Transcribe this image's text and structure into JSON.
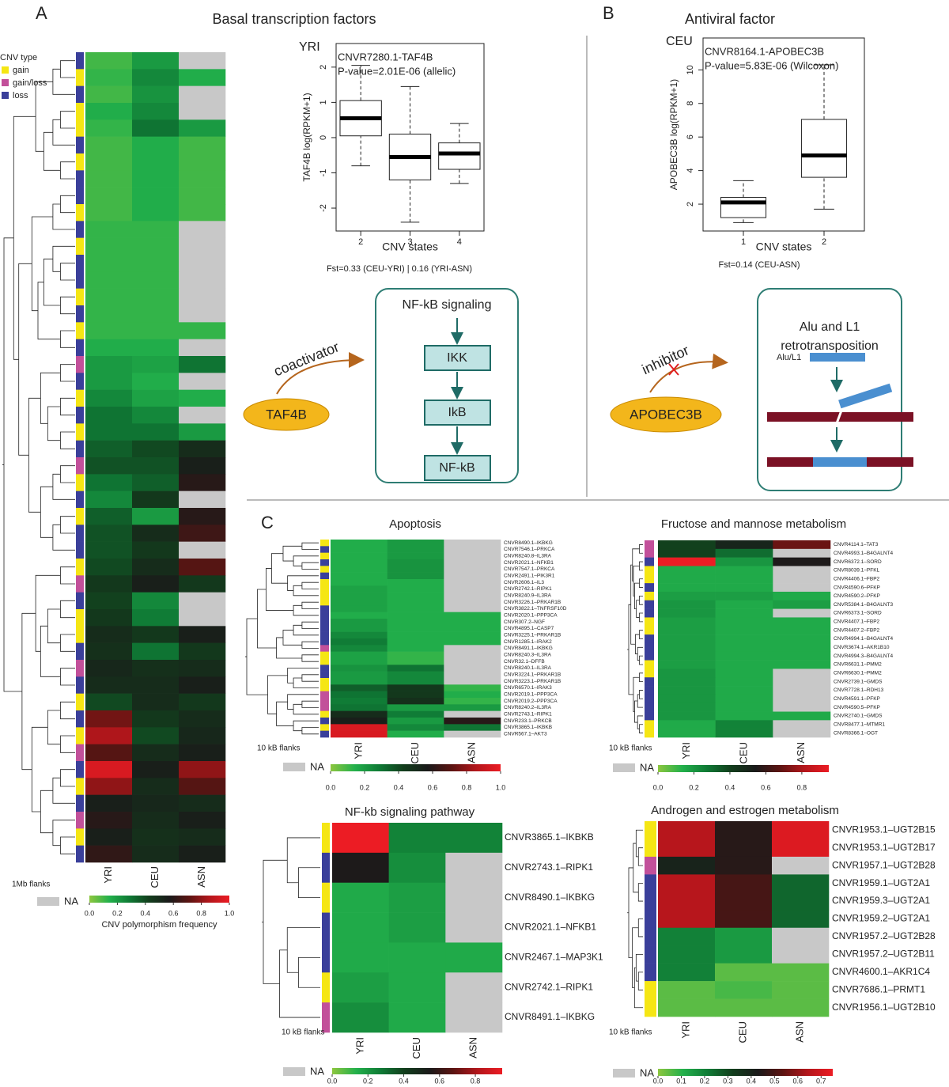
{
  "panel_labels": [
    "A",
    "B",
    "C"
  ],
  "panel_titles": [
    "Basal transcription factors",
    "Antiviral factor"
  ],
  "cnv_type_legend": {
    "title": "CNV type",
    "items": [
      {
        "name": "gain",
        "color": "#f5e614"
      },
      {
        "name": "gain/loss",
        "color": "#c2509a"
      },
      {
        "name": "loss",
        "color": "#3a3f9a"
      }
    ]
  },
  "diagrams": {
    "nfkb": {
      "title": "NF-kB signaling",
      "nodes": [
        "IKK",
        "IkB",
        "NF-kB"
      ],
      "factor": "TAF4B",
      "relation": "coactivator"
    },
    "alu": {
      "title_lines": [
        "Alu  and L1",
        "retrotransposition"
      ],
      "element": "Alu/L1",
      "factor": "APOBEC3B",
      "relation": "inhibitor"
    }
  },
  "chart_data": [
    {
      "type": "heatmap",
      "columns": [
        "YRI",
        "CEU",
        "ASN"
      ],
      "flank_label": "1Mb flanks",
      "na_label": "NA",
      "na_color": "#c8c8c8",
      "colorbar_label": "CNV polymorphism frequency",
      "colors": [
        "#8dc63f",
        "#22b04b",
        "#0f7a35",
        "#123d1c",
        "#1a1a1a",
        "#5c1412",
        "#b3161b",
        "#ec1c24"
      ],
      "zlim": [
        0,
        1
      ],
      "zticks": [
        {
          "value": 0,
          "label": "0.0"
        },
        0.2,
        0.4,
        0.6,
        0.8,
        {
          "value": 1,
          "label": "1.0"
        }
      ],
      "row_types": [
        "loss",
        "gain",
        "loss",
        "gain",
        "gain",
        "loss",
        "gain",
        "loss",
        "loss",
        "gain",
        "loss",
        "gain",
        "loss",
        "loss",
        "gain",
        "loss",
        "gain",
        "loss",
        "gain/loss",
        "loss",
        "gain",
        "loss",
        "gain",
        "loss",
        "gain/loss",
        "gain",
        "loss",
        "gain",
        "loss",
        "loss",
        "gain",
        "gain/loss",
        "loss",
        "gain",
        "gain",
        "loss",
        "gain/loss",
        "loss",
        "gain",
        "loss",
        "gain",
        "gain/loss",
        "loss",
        "gain",
        "loss",
        "gain/loss",
        "gain",
        "loss"
      ],
      "values": [
        [
          0.1,
          0.2,
          null
        ],
        [
          0.12,
          0.25,
          0.15
        ],
        [
          0.1,
          0.22,
          null
        ],
        [
          0.15,
          0.25,
          null
        ],
        [
          0.12,
          0.3,
          0.2
        ],
        [
          0.1,
          0.15,
          0.1
        ],
        [
          0.1,
          0.15,
          0.1
        ],
        [
          0.1,
          0.15,
          0.1
        ],
        [
          0.1,
          0.15,
          0.1
        ],
        [
          0.1,
          0.15,
          0.1
        ],
        [
          0.12,
          0.12,
          null
        ],
        [
          0.12,
          0.12,
          null
        ],
        [
          0.12,
          0.12,
          null
        ],
        [
          0.12,
          0.12,
          null
        ],
        [
          0.12,
          0.12,
          null
        ],
        [
          0.12,
          0.12,
          null
        ],
        [
          0.12,
          0.12,
          0.12
        ],
        [
          0.15,
          0.15,
          null
        ],
        [
          0.2,
          0.18,
          0.3
        ],
        [
          0.2,
          0.15,
          null
        ],
        [
          0.25,
          0.18,
          0.15
        ],
        [
          0.3,
          0.25,
          null
        ],
        [
          0.3,
          0.3,
          0.2
        ],
        [
          0.35,
          0.4,
          0.5
        ],
        [
          0.38,
          0.38,
          0.55
        ],
        [
          0.3,
          0.35,
          0.6
        ],
        [
          0.25,
          0.45,
          null
        ],
        [
          0.35,
          0.2,
          0.6
        ],
        [
          0.38,
          0.5,
          0.65
        ],
        [
          0.38,
          0.45,
          null
        ],
        [
          0.4,
          0.5,
          0.7
        ],
        [
          0.45,
          0.55,
          0.45
        ],
        [
          0.42,
          0.25,
          null
        ],
        [
          0.45,
          0.28,
          null
        ],
        [
          0.5,
          0.45,
          0.55
        ],
        [
          0.48,
          0.3,
          0.45
        ],
        [
          0.52,
          0.48,
          0.5
        ],
        [
          0.5,
          0.5,
          0.55
        ],
        [
          0.4,
          0.5,
          0.45
        ],
        [
          0.75,
          0.45,
          0.5
        ],
        [
          0.85,
          0.4,
          0.52
        ],
        [
          0.7,
          0.5,
          0.55
        ],
        [
          0.95,
          0.55,
          0.8
        ],
        [
          0.8,
          0.5,
          0.7
        ],
        [
          0.55,
          0.52,
          0.5
        ],
        [
          0.6,
          0.5,
          0.55
        ],
        [
          0.55,
          0.48,
          0.5
        ],
        [
          0.62,
          0.5,
          0.55
        ]
      ]
    },
    {
      "type": "boxplot",
      "title": "YRI",
      "annotations": [
        "CNVR7280.1-TAF4B",
        "P-value=2.01E-06 (allelic)"
      ],
      "xlabel": "CNV states",
      "ylabel": "TAF4B log(RPKM+1)",
      "footnote": "Fst=0.33 (CEU-YRI) | 0.16 (YRI-ASN)",
      "categories": [
        "2",
        "3",
        "4"
      ],
      "ylim": [
        -2.65,
        2.67
      ],
      "yticks": [
        -2,
        -1,
        0,
        1,
        2
      ],
      "stats": {
        "whislo": [
          -0.8,
          -2.4,
          -1.3
        ],
        "q1": [
          0.05,
          -1.2,
          -0.9
        ],
        "med": [
          0.55,
          -0.55,
          -0.45
        ],
        "q3": [
          1.05,
          0.1,
          -0.15
        ],
        "whishi": [
          2.05,
          1.45,
          0.4
        ]
      }
    },
    {
      "type": "boxplot",
      "title": "CEU",
      "annotations": [
        "CNVR8164.1-APOBEC3B",
        "P-value=5.83E-06 (Wilcoxon)"
      ],
      "xlabel": "CNV states",
      "ylabel": "APOBEC3B log(RPKM+1)",
      "footnote": "Fst=0.14 (CEU-ASN)",
      "categories": [
        "1",
        "2"
      ],
      "ylim": [
        0.4,
        11.9
      ],
      "yticks": [
        2,
        4,
        6,
        8,
        10
      ],
      "stats": {
        "whislo": [
          0.9,
          1.7
        ],
        "q1": [
          1.2,
          3.6
        ],
        "med": [
          2.1,
          4.9
        ],
        "q3": [
          2.4,
          7.05
        ],
        "whishi": [
          3.4,
          10.3
        ]
      }
    },
    {
      "type": "heatmap",
      "title": "Apoptosis",
      "columns": [
        "YRI",
        "CEU",
        "ASN"
      ],
      "flank_label": "10 kB flanks",
      "na_label": "NA",
      "na_color": "#c8c8c8",
      "colors": [
        "#8dc63f",
        "#22b04b",
        "#0f7a35",
        "#123d1c",
        "#1a1a1a",
        "#5c1412",
        "#b3161b",
        "#ec1c24"
      ],
      "zlim": [
        0,
        1
      ],
      "zticks": [
        {
          "value": 0,
          "label": "0.0"
        },
        0.2,
        0.4,
        0.6,
        0.8,
        {
          "value": 1,
          "label": "1.0"
        }
      ],
      "rows": [
        "CNVR8490.1–IKBKG",
        "CNVR7546.1–PRKCA",
        "CNVR8240.8–IL3RA",
        "CNVR2021.1–NFKB1",
        "CNVR7547.1–PRKCA",
        "CNVR2491.1–PIK3R1",
        "CNVR2606.1–IL3",
        "CNVR2742.1–RIPK1",
        "CNVR8240.9–IL3RA",
        "CNVR3226.1–PRKAR1B",
        "CNVR3822.1–TNFRSF10D",
        "CNVR2020.1–PPP3CA",
        "CNVR307.2–NGF",
        "CNVR4895.1–CASP7",
        "CNVR3225.1–PRKAR1B",
        "CNVR1285.1–IRAK2",
        "CNVR8491.1–IKBKG",
        "CNVR8240.3–IL3RA",
        "CNVR32.1–DFFB",
        "CNVR8240.1–IL3RA",
        "CNVR3224.1–PRKAR1B",
        "CNVR3223.1–PRKAR1B",
        "CNVR6570.1–IRAK3",
        "CNVR2019.1–PPP3CA",
        "CNVR2019.2–PPP3CA",
        "CNVR8240.2–IL3RA",
        "CNVR2743.1–RIPK1",
        "CNVR233.1–PRKCB",
        "CNVR3865.1–IKBKB",
        "CNVR567.1–AKT3"
      ],
      "row_types": [
        "gain",
        "loss",
        "gain",
        "loss",
        "gain",
        "loss",
        "gain",
        "gain",
        "gain",
        "gain",
        "loss",
        "loss",
        "loss",
        "loss",
        "loss",
        "loss",
        "gain/loss",
        "gain",
        "gain",
        "loss",
        "loss",
        "gain",
        "gain",
        "gain/loss",
        "gain/loss",
        "gain/loss",
        "gain",
        "loss",
        "gain",
        "loss"
      ],
      "values": [
        [
          0.15,
          0.2,
          null
        ],
        [
          0.15,
          0.2,
          null
        ],
        [
          0.15,
          0.2,
          null
        ],
        [
          0.15,
          0.22,
          null
        ],
        [
          0.15,
          0.22,
          null
        ],
        [
          0.15,
          0.22,
          null
        ],
        [
          0.15,
          0.15,
          null
        ],
        [
          0.18,
          0.15,
          null
        ],
        [
          0.18,
          0.15,
          null
        ],
        [
          0.18,
          0.15,
          null
        ],
        [
          0.18,
          0.15,
          null
        ],
        [
          0.15,
          0.15,
          0.15
        ],
        [
          0.2,
          0.15,
          0.15
        ],
        [
          0.2,
          0.15,
          0.15
        ],
        [
          0.25,
          0.15,
          0.15
        ],
        [
          0.28,
          0.15,
          0.15
        ],
        [
          0.25,
          0.15,
          null
        ],
        [
          0.18,
          0.12,
          null
        ],
        [
          0.18,
          0.12,
          null
        ],
        [
          0.22,
          0.3,
          null
        ],
        [
          0.2,
          0.25,
          null
        ],
        [
          0.2,
          0.25,
          null
        ],
        [
          0.35,
          0.45,
          0.12
        ],
        [
          0.3,
          0.45,
          0.15
        ],
        [
          0.28,
          0.48,
          0.12
        ],
        [
          0.3,
          0.2,
          0.2
        ],
        [
          0.5,
          0.28,
          null
        ],
        [
          0.55,
          0.2,
          0.6
        ],
        [
          0.95,
          0.25,
          0.3
        ],
        [
          0.95,
          0.15,
          null
        ]
      ]
    },
    {
      "type": "heatmap",
      "title": "Fructose and mannose metabolism",
      "columns": [
        "YRI",
        "CEU",
        "ASN"
      ],
      "flank_label": "10 kB flanks",
      "na_label": "NA",
      "na_color": "#c8c8c8",
      "colors": [
        "#8dc63f",
        "#22b04b",
        "#0f7a35",
        "#123d1c",
        "#1a1a1a",
        "#5c1412",
        "#b3161b",
        "#ec1c24"
      ],
      "zlim": [
        0,
        0.95
      ],
      "zticks": [
        {
          "value": 0,
          "label": "0.0"
        },
        0.2,
        0.4,
        0.6,
        0.8
      ],
      "rows": [
        "CNVR4114.1–TAT3",
        "CNVR4993.1–B4GALNT4",
        "CNVR6372.1–SORD",
        "CNVR8039.1–PFKL",
        "CNVR4406.1–FBP2",
        "CNVR4590.6–PFKP",
        "CNVR4590.2–PFKP",
        "CNVR5384.1–B4GALNT3",
        "CNVR6373.1–SORD",
        "CNVR4407.1–FBP2",
        "CNVR4407.2–FBP2",
        "CNVR4994.1–B4GALNT4",
        "CNVR3674.1–AKR1B10",
        "CNVR4994.3–B4GALNT4",
        "CNVR6631.1–PMM2",
        "CNVR6630.1–PMM2",
        "CNVR2739.1–GMDS",
        "CNVR7728.1–RDH13",
        "CNVR4591.1–PFKP",
        "CNVR4590.5–PFKP",
        "CNVR2740.1–GMDS",
        "CNVR8477.1–MTMR1",
        "CNVR8366.1–OGT"
      ],
      "row_types": [
        "gain/loss",
        "gain/loss",
        "loss",
        "gain",
        "gain",
        "loss",
        "gain",
        "loss",
        "loss",
        "gain",
        "gain",
        "loss",
        "loss",
        "loss",
        "gain",
        "gain",
        "loss",
        "loss",
        "loss",
        "loss",
        "loss",
        "gain",
        "gain"
      ],
      "values": [
        [
          0.4,
          0.5,
          0.7
        ],
        [
          0.4,
          0.3,
          null
        ],
        [
          0.95,
          0.2,
          0.55
        ],
        [
          0.15,
          0.15,
          null
        ],
        [
          0.15,
          0.15,
          null
        ],
        [
          0.15,
          0.15,
          null
        ],
        [
          0.18,
          0.18,
          0.15
        ],
        [
          0.2,
          0.15,
          0.18
        ],
        [
          0.2,
          0.15,
          null
        ],
        [
          0.18,
          0.15,
          0.15
        ],
        [
          0.18,
          0.15,
          0.15
        ],
        [
          0.18,
          0.15,
          0.15
        ],
        [
          0.18,
          0.15,
          0.15
        ],
        [
          0.18,
          0.15,
          0.15
        ],
        [
          0.18,
          0.15,
          0.15
        ],
        [
          0.2,
          0.15,
          null
        ],
        [
          0.2,
          0.15,
          null
        ],
        [
          0.2,
          0.15,
          null
        ],
        [
          0.2,
          0.15,
          null
        ],
        [
          0.2,
          0.15,
          null
        ],
        [
          0.2,
          0.15,
          0.15
        ],
        [
          0.15,
          0.25,
          null
        ],
        [
          0.15,
          0.25,
          null
        ]
      ]
    },
    {
      "type": "heatmap",
      "title": "NF-kb signaling pathway",
      "columns": [
        "YRI",
        "CEU",
        "ASN"
      ],
      "flank_label": "10 kB flanks",
      "na_label": "NA",
      "na_color": "#c8c8c8",
      "colors": [
        "#8dc63f",
        "#22b04b",
        "#0f7a35",
        "#123d1c",
        "#1a1a1a",
        "#5c1412",
        "#b3161b",
        "#ec1c24"
      ],
      "zlim": [
        0,
        0.95
      ],
      "zticks": [
        {
          "value": 0,
          "label": "0.0"
        },
        0.2,
        0.4,
        0.6,
        0.8
      ],
      "rows": [
        "CNVR3865.1–IKBKB",
        "CNVR2743.1–RIPK1",
        "CNVR8490.1–IKBKG",
        "CNVR2021.1–NFKB1",
        "CNVR2467.1–MAP3K1",
        "CNVR2742.1–RIPK1",
        "CNVR8491.1–IKBKG"
      ],
      "row_types": [
        "gain",
        "loss",
        "gain",
        "loss",
        "loss",
        "gain",
        "gain/loss"
      ],
      "values": [
        [
          0.95,
          0.25,
          0.25
        ],
        [
          0.55,
          0.22,
          null
        ],
        [
          0.15,
          0.18,
          null
        ],
        [
          0.15,
          0.18,
          null
        ],
        [
          0.15,
          0.15,
          0.15
        ],
        [
          0.18,
          0.15,
          null
        ],
        [
          0.22,
          0.15,
          null
        ]
      ]
    },
    {
      "type": "heatmap",
      "title": "Androgen and estrogen metabolism",
      "columns": [
        "YRI",
        "CEU",
        "ASN"
      ],
      "flank_label": "10 kB flanks",
      "na_label": "NA",
      "na_color": "#c8c8c8",
      "colors": [
        "#8dc63f",
        "#22b04b",
        "#0f7a35",
        "#123d1c",
        "#1a1a1a",
        "#5c1412",
        "#b3161b",
        "#ec1c24"
      ],
      "zlim": [
        0,
        0.75
      ],
      "zticks": [
        {
          "value": 0,
          "label": "0.0"
        },
        0.1,
        0.2,
        0.3,
        0.4,
        0.5,
        0.6,
        0.7
      ],
      "rows": [
        "CNVR1953.1–UGT2B15",
        "CNVR1953.1–UGT2B17",
        "CNVR1957.1–UGT2B28",
        "CNVR1959.1–UGT2A1",
        "CNVR1959.3–UGT2A1",
        "CNVR1959.2–UGT2A1",
        "CNVR1957.2–UGT2B28",
        "CNVR1957.2–UGT2B11",
        "CNVR4600.1–AKR1C4",
        "CNVR7686.1–PRMT1",
        "CNVR1956.1–UGT2B10"
      ],
      "row_types": [
        "gain",
        "gain",
        "gain/loss",
        "loss",
        "loss",
        "loss",
        "loss",
        "loss",
        "loss",
        "gain",
        "gain"
      ],
      "values": [
        [
          0.65,
          0.45,
          0.72
        ],
        [
          0.65,
          0.45,
          0.72
        ],
        [
          0.4,
          0.45,
          null
        ],
        [
          0.65,
          0.5,
          0.25
        ],
        [
          0.65,
          0.5,
          0.25
        ],
        [
          0.65,
          0.5,
          0.25
        ],
        [
          0.2,
          0.15,
          null
        ],
        [
          0.2,
          0.15,
          null
        ],
        [
          0.2,
          0.05,
          0.05
        ],
        [
          0.05,
          0.07,
          0.05
        ],
        [
          0.05,
          0.05,
          0.05
        ]
      ]
    }
  ]
}
